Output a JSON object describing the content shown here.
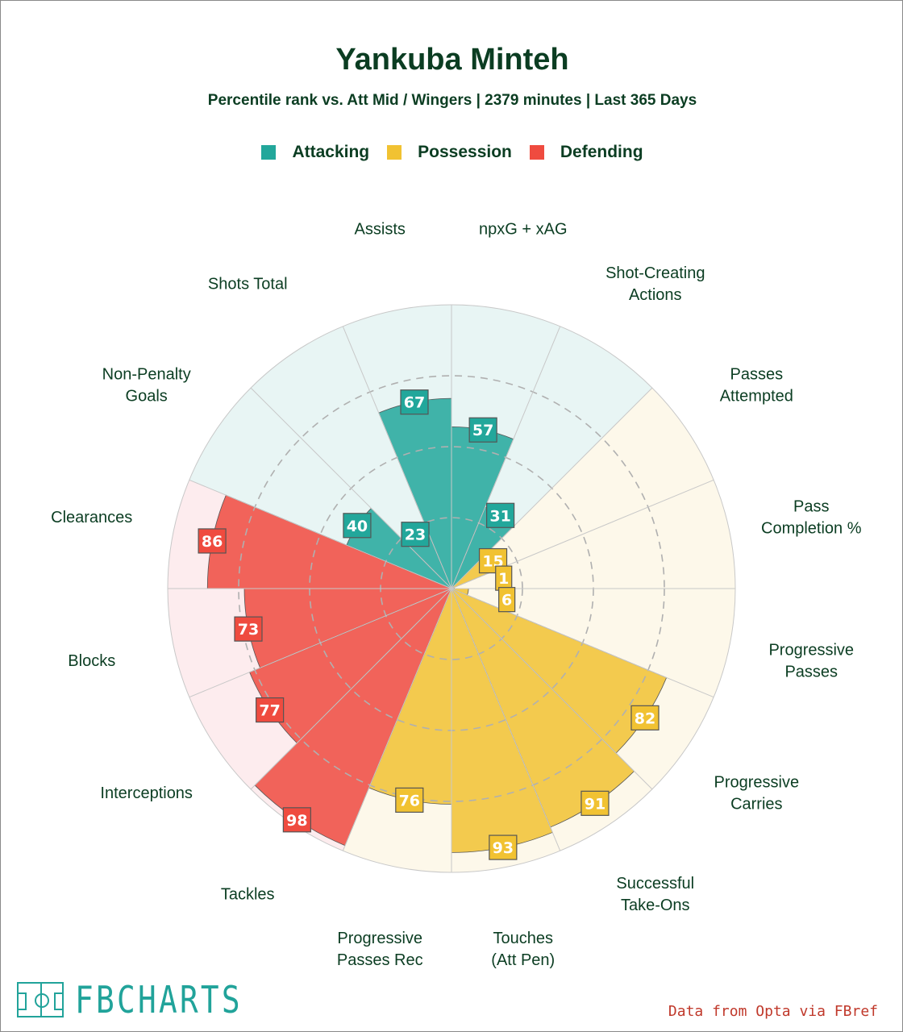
{
  "title": "Yankuba Minteh",
  "subtitle": "Percentile rank vs. Att Mid / Wingers | 2379 minutes | Last 365 Days",
  "legend": [
    {
      "label": "Attacking",
      "color": "#22a79b"
    },
    {
      "label": "Possession",
      "color": "#f1c232"
    },
    {
      "label": "Defending",
      "color": "#ef4b3f"
    }
  ],
  "chart_data": {
    "type": "polar-bar",
    "title": "Yankuba Minteh",
    "subtitle": "Percentile rank vs. Att Mid / Wingers | 2379 minutes | Last 365 Days",
    "rlim": [
      0,
      100
    ],
    "categories": [
      {
        "label": "npxG + xAG",
        "value": 57,
        "group": "Attacking"
      },
      {
        "label": "Shot-Creating Actions",
        "value": 31,
        "group": "Attacking"
      },
      {
        "label": "Passes Attempted",
        "value": 15,
        "group": "Possession"
      },
      {
        "label": "Pass Completion %",
        "value": 1,
        "group": "Possession"
      },
      {
        "label": "Progressive Passes",
        "value": 6,
        "group": "Possession"
      },
      {
        "label": "Progressive Carries",
        "value": 82,
        "group": "Possession"
      },
      {
        "label": "Successful Take-Ons",
        "value": 91,
        "group": "Possession"
      },
      {
        "label": "Touches (Att Pen)",
        "value": 93,
        "group": "Possession"
      },
      {
        "label": "Progressive Passes Rec",
        "value": 76,
        "group": "Possession"
      },
      {
        "label": "Tackles",
        "value": 98,
        "group": "Defending"
      },
      {
        "label": "Interceptions",
        "value": 77,
        "group": "Defending"
      },
      {
        "label": "Blocks",
        "value": 73,
        "group": "Defending"
      },
      {
        "label": "Clearances",
        "value": 86,
        "group": "Defending"
      },
      {
        "label": "Non-Penalty Goals",
        "value": 40,
        "group": "Attacking"
      },
      {
        "label": "Shots Total",
        "value": 23,
        "group": "Attacking"
      },
      {
        "label": "Assists",
        "value": 67,
        "group": "Attacking"
      }
    ],
    "group_colors": {
      "Attacking": {
        "bar": "#22a79b",
        "bg": "#e8f5f4"
      },
      "Possession": {
        "bar": "#f1c232",
        "bg": "#fdf8ea"
      },
      "Defending": {
        "bar": "#ef4b3f",
        "bg": "#fdecee"
      }
    },
    "gridlines": [
      25,
      50,
      75
    ]
  },
  "footer": {
    "brand": "FBCHARTS",
    "source": "Data from Opta via FBref"
  }
}
